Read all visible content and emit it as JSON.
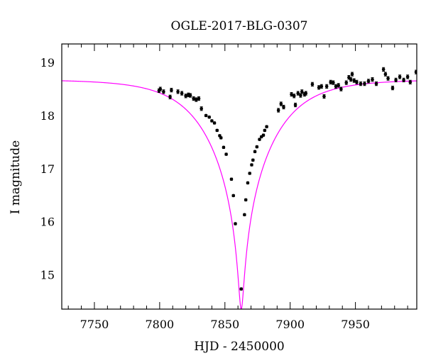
{
  "chart_data": {
    "type": "scatter",
    "title": "OGLE-2017-BLG-0307",
    "xlabel": "HJD - 2450000",
    "ylabel": "I magnitude",
    "xlim": [
      7725,
      7997
    ],
    "ylim": [
      19.35,
      14.35
    ],
    "y_inverted": true,
    "x_ticks": [
      7750,
      7800,
      7850,
      7900,
      7950
    ],
    "y_ticks": [
      15,
      16,
      17,
      18,
      19
    ],
    "grid": false,
    "model_color": "#ff00ff",
    "point_color": "#000000",
    "model": {
      "type": "point-lens light curve",
      "t0": 7862.5,
      "baseline_mag": 18.68,
      "peak_mag": 14.35
    },
    "points": [
      {
        "x": 7799.5,
        "y": 18.47
      },
      {
        "x": 7800.5,
        "y": 18.5
      },
      {
        "x": 7803.0,
        "y": 18.45
      },
      {
        "x": 7808.0,
        "y": 18.35
      },
      {
        "x": 7809.0,
        "y": 18.48
      },
      {
        "x": 7814.0,
        "y": 18.45
      },
      {
        "x": 7817.0,
        "y": 18.42
      },
      {
        "x": 7820.0,
        "y": 18.37
      },
      {
        "x": 7822.0,
        "y": 18.39
      },
      {
        "x": 7823.5,
        "y": 18.38
      },
      {
        "x": 7826.0,
        "y": 18.32
      },
      {
        "x": 7828.0,
        "y": 18.3
      },
      {
        "x": 7830.0,
        "y": 18.32
      },
      {
        "x": 7832.0,
        "y": 18.13
      },
      {
        "x": 7835.5,
        "y": 18.0
      },
      {
        "x": 7838.0,
        "y": 17.97
      },
      {
        "x": 7840.0,
        "y": 17.9
      },
      {
        "x": 7842.0,
        "y": 17.86
      },
      {
        "x": 7844.0,
        "y": 17.72
      },
      {
        "x": 7846.0,
        "y": 17.62
      },
      {
        "x": 7847.0,
        "y": 17.58
      },
      {
        "x": 7849.0,
        "y": 17.4
      },
      {
        "x": 7851.0,
        "y": 17.27
      },
      {
        "x": 7855.0,
        "y": 16.8
      },
      {
        "x": 7856.5,
        "y": 16.49
      },
      {
        "x": 7858.0,
        "y": 15.96
      },
      {
        "x": 7862.5,
        "y": 14.73
      },
      {
        "x": 7865.0,
        "y": 16.13
      },
      {
        "x": 7866.0,
        "y": 16.41
      },
      {
        "x": 7867.5,
        "y": 16.73
      },
      {
        "x": 7869.0,
        "y": 16.91
      },
      {
        "x": 7870.5,
        "y": 17.07
      },
      {
        "x": 7871.5,
        "y": 17.16
      },
      {
        "x": 7873.0,
        "y": 17.32
      },
      {
        "x": 7874.5,
        "y": 17.41
      },
      {
        "x": 7876.5,
        "y": 17.55
      },
      {
        "x": 7878.0,
        "y": 17.6
      },
      {
        "x": 7879.5,
        "y": 17.63
      },
      {
        "x": 7880.5,
        "y": 17.72
      },
      {
        "x": 7882.0,
        "y": 17.79
      },
      {
        "x": 7891.0,
        "y": 18.1
      },
      {
        "x": 7893.0,
        "y": 18.22
      },
      {
        "x": 7895.0,
        "y": 18.16
      },
      {
        "x": 7901.0,
        "y": 18.4
      },
      {
        "x": 7903.0,
        "y": 18.37
      },
      {
        "x": 7904.0,
        "y": 18.2
      },
      {
        "x": 7906.0,
        "y": 18.42
      },
      {
        "x": 7908.0,
        "y": 18.38
      },
      {
        "x": 7909.0,
        "y": 18.45
      },
      {
        "x": 7911.0,
        "y": 18.4
      },
      {
        "x": 7912.0,
        "y": 18.42
      },
      {
        "x": 7917.0,
        "y": 18.59
      },
      {
        "x": 7922.0,
        "y": 18.53
      },
      {
        "x": 7924.0,
        "y": 18.55
      },
      {
        "x": 7926.0,
        "y": 18.36
      },
      {
        "x": 7928.0,
        "y": 18.55
      },
      {
        "x": 7931.0,
        "y": 18.63
      },
      {
        "x": 7933.0,
        "y": 18.62
      },
      {
        "x": 7935.0,
        "y": 18.55
      },
      {
        "x": 7937.0,
        "y": 18.57
      },
      {
        "x": 7939.0,
        "y": 18.5
      },
      {
        "x": 7943.0,
        "y": 18.62
      },
      {
        "x": 7945.0,
        "y": 18.72
      },
      {
        "x": 7946.5,
        "y": 18.68
      },
      {
        "x": 7947.5,
        "y": 18.78
      },
      {
        "x": 7949.0,
        "y": 18.66
      },
      {
        "x": 7951.0,
        "y": 18.63
      },
      {
        "x": 7954.0,
        "y": 18.6
      },
      {
        "x": 7957.0,
        "y": 18.6
      },
      {
        "x": 7960.0,
        "y": 18.65
      },
      {
        "x": 7963.0,
        "y": 18.68
      },
      {
        "x": 7966.0,
        "y": 18.6
      },
      {
        "x": 7971.5,
        "y": 18.87
      },
      {
        "x": 7973.0,
        "y": 18.78
      },
      {
        "x": 7975.0,
        "y": 18.7
      },
      {
        "x": 7978.5,
        "y": 18.52
      },
      {
        "x": 7981.0,
        "y": 18.67
      },
      {
        "x": 7984.0,
        "y": 18.73
      },
      {
        "x": 7987.0,
        "y": 18.67
      },
      {
        "x": 7990.0,
        "y": 18.73
      },
      {
        "x": 7992.0,
        "y": 18.63
      },
      {
        "x": 7996.5,
        "y": 18.82
      }
    ]
  }
}
